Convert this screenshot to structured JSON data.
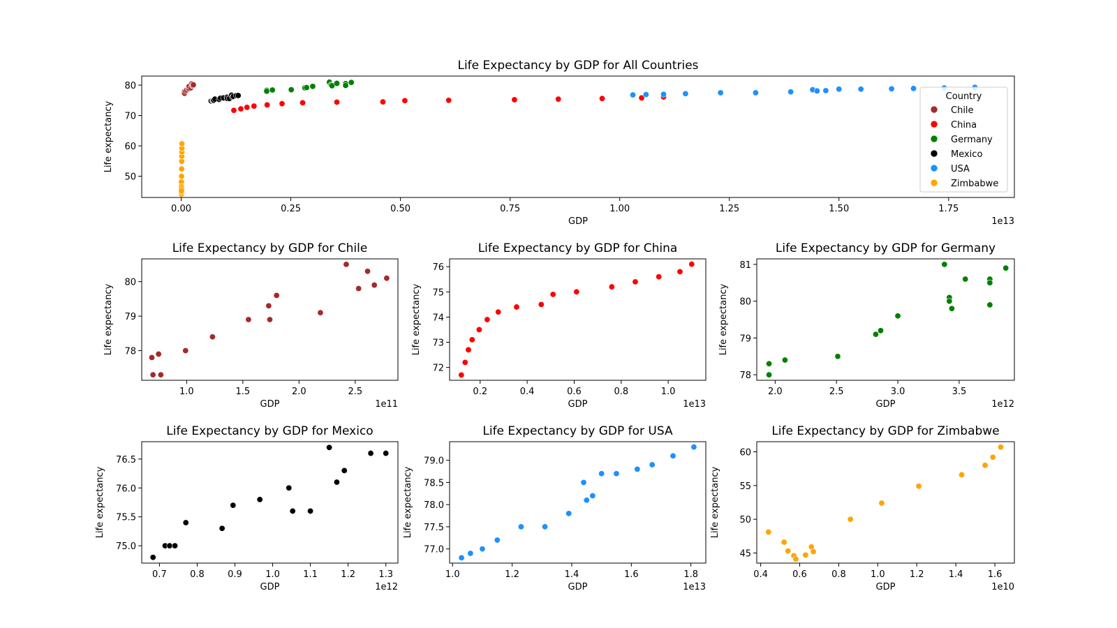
{
  "figure": {
    "background": "#ffffff"
  },
  "colors": {
    "Chile": "#a52a2a",
    "China": "#ff0000",
    "Germany": "#008000",
    "Mexico": "#000000",
    "USA": "#1e90ff",
    "Zimbabwe": "#ffa500"
  },
  "legend": {
    "title": "Country",
    "entries": [
      "Chile",
      "China",
      "Germany",
      "Mexico",
      "USA",
      "Zimbabwe"
    ],
    "placement": "right"
  },
  "chart_data": [
    {
      "id": "all",
      "type": "scatter",
      "title": "Life Expectancy by GDP for All Countries",
      "xlabel": "GDP",
      "ylabel": "Life expectancy",
      "x_multiplier": "1e13",
      "xticks": [
        0,
        0.25,
        0.5,
        0.75,
        1.0,
        1.25,
        1.5,
        1.75
      ],
      "xtick_labels": [
        "0.00",
        "0.25",
        "0.50",
        "0.75",
        "1.00",
        "1.25",
        "1.50",
        "1.75"
      ],
      "yticks": [
        50,
        60,
        70,
        80
      ],
      "ytick_labels": [
        "50",
        "60",
        "70",
        "80"
      ],
      "xlim": [
        -0.09,
        1.9
      ],
      "ylim": [
        43,
        83
      ],
      "legend": true,
      "series_from": [
        "Chile",
        "China",
        "Germany",
        "Mexico",
        "USA",
        "Zimbabwe"
      ],
      "scale_x": {
        "Chile": 0.01,
        "China": 1,
        "Germany": 0.1,
        "Mexico": 0.1,
        "USA": 1,
        "Zimbabwe": 0.001
      }
    },
    {
      "id": "Chile",
      "type": "scatter",
      "title": "Life Expectancy by GDP for Chile",
      "xlabel": "GDP",
      "ylabel": "Life expectancy",
      "x_multiplier": "1e11",
      "xticks": [
        1.0,
        1.5,
        2.0,
        2.5
      ],
      "xtick_labels": [
        "1.0",
        "1.5",
        "2.0",
        "2.5"
      ],
      "yticks": [
        78,
        79,
        80
      ],
      "ytick_labels": [
        "78",
        "79",
        "80"
      ],
      "xlim": [
        0.6,
        2.88
      ],
      "ylim": [
        77.14,
        80.66
      ],
      "series": [
        {
          "name": "Chile",
          "x": [
            0.69,
            0.7,
            0.75,
            0.77,
            0.99,
            1.23,
            1.55,
            1.73,
            1.74,
            1.8,
            2.19,
            2.42,
            2.53,
            2.61,
            2.67,
            2.78
          ],
          "y": [
            77.8,
            77.3,
            77.9,
            77.3,
            78.0,
            78.4,
            78.9,
            79.3,
            78.9,
            79.6,
            79.1,
            80.5,
            79.8,
            80.3,
            79.9,
            80.1
          ]
        }
      ]
    },
    {
      "id": "China",
      "type": "scatter",
      "title": "Life Expectancy by GDP for China",
      "xlabel": "GDP",
      "ylabel": "Life expectancy",
      "x_multiplier": "1e13",
      "xticks": [
        0.2,
        0.4,
        0.6,
        0.8,
        1.0
      ],
      "xtick_labels": [
        "0.2",
        "0.4",
        "0.6",
        "0.8",
        "1.0"
      ],
      "yticks": [
        72,
        73,
        74,
        75,
        76
      ],
      "ytick_labels": [
        "72",
        "73",
        "74",
        "75",
        "76"
      ],
      "xlim": [
        0.07,
        1.16
      ],
      "ylim": [
        71.49,
        76.31
      ],
      "series": [
        {
          "name": "China",
          "x": [
            0.12,
            0.136,
            0.15,
            0.166,
            0.196,
            0.23,
            0.277,
            0.355,
            0.46,
            0.51,
            0.61,
            0.76,
            0.86,
            0.96,
            1.05,
            1.1
          ],
          "y": [
            71.7,
            72.2,
            72.7,
            73.1,
            73.5,
            73.9,
            74.2,
            74.4,
            74.5,
            74.9,
            75.0,
            75.2,
            75.4,
            75.6,
            75.8,
            76.1
          ]
        }
      ]
    },
    {
      "id": "Germany",
      "type": "scatter",
      "title": "Life Expectancy by GDP for Germany",
      "xlabel": "GDP",
      "ylabel": "Life expectancy",
      "x_multiplier": "1e12",
      "xticks": [
        2.0,
        2.5,
        3.0,
        3.5
      ],
      "xtick_labels": [
        "2.0",
        "2.5",
        "3.0",
        "3.5"
      ],
      "yticks": [
        78,
        79,
        80,
        81
      ],
      "ytick_labels": [
        "78",
        "79",
        "80",
        "81"
      ],
      "xlim": [
        1.85,
        3.95
      ],
      "ylim": [
        77.85,
        81.15
      ],
      "series": [
        {
          "name": "Germany",
          "x": [
            1.95,
            1.95,
            2.08,
            2.51,
            2.82,
            2.86,
            3.0,
            3.38,
            3.42,
            3.42,
            3.44,
            3.55,
            3.75,
            3.75,
            3.75,
            3.88
          ],
          "y": [
            78.3,
            78.0,
            78.4,
            78.5,
            79.1,
            79.2,
            79.6,
            81.0,
            80.1,
            80.0,
            79.8,
            80.6,
            80.6,
            80.5,
            79.9,
            80.9
          ]
        }
      ]
    },
    {
      "id": "Mexico",
      "type": "scatter",
      "title": "Life Expectancy by GDP for Mexico",
      "xlabel": "GDP",
      "ylabel": "Life expectancy",
      "x_multiplier": "1e12",
      "xticks": [
        0.7,
        0.8,
        0.9,
        1.0,
        1.1,
        1.2,
        1.3
      ],
      "xtick_labels": [
        "0.7",
        "0.8",
        "0.9",
        "1.0",
        "1.1",
        "1.2",
        "1.3"
      ],
      "yticks": [
        75.0,
        75.5,
        76.0,
        76.5
      ],
      "ytick_labels": [
        "75.0",
        "75.5",
        "76.0",
        "76.5"
      ],
      "xlim": [
        0.653,
        1.332
      ],
      "ylim": [
        74.7,
        76.8
      ],
      "series": [
        {
          "name": "Mexico",
          "x": [
            0.683,
            0.715,
            0.727,
            0.741,
            0.77,
            0.866,
            0.895,
            0.966,
            1.043,
            1.053,
            1.1,
            1.15,
            1.17,
            1.19,
            1.26,
            1.3
          ],
          "y": [
            74.8,
            75.0,
            75.0,
            75.0,
            75.4,
            75.3,
            75.7,
            75.8,
            76.0,
            75.6,
            75.6,
            76.7,
            76.1,
            76.3,
            76.6,
            76.6
          ]
        }
      ]
    },
    {
      "id": "USA",
      "type": "scatter",
      "title": "Life Expectancy by GDP for USA",
      "xlabel": "GDP",
      "ylabel": "Life expectancy",
      "x_multiplier": "1e13",
      "xticks": [
        1.0,
        1.2,
        1.4,
        1.6,
        1.8
      ],
      "xtick_labels": [
        "1.0",
        "1.2",
        "1.4",
        "1.6",
        "1.8"
      ],
      "yticks": [
        77.0,
        77.5,
        78.0,
        78.5,
        79.0
      ],
      "ytick_labels": [
        "77.0",
        "77.5",
        "78.0",
        "78.5",
        "79.0"
      ],
      "xlim": [
        0.99,
        1.85
      ],
      "ylim": [
        76.68,
        79.42
      ],
      "series": [
        {
          "name": "USA",
          "x": [
            1.03,
            1.06,
            1.1,
            1.15,
            1.23,
            1.31,
            1.39,
            1.44,
            1.45,
            1.47,
            1.5,
            1.55,
            1.62,
            1.67,
            1.74,
            1.81
          ],
          "y": [
            76.8,
            76.9,
            77.0,
            77.2,
            77.5,
            77.5,
            77.8,
            78.5,
            78.1,
            78.2,
            78.7,
            78.7,
            78.8,
            78.9,
            79.1,
            79.3
          ]
        }
      ]
    },
    {
      "id": "Zimbabwe",
      "type": "scatter",
      "title": "Life Expectancy by GDP for Zimbabwe",
      "xlabel": "GDP",
      "ylabel": "Life expectancy",
      "x_multiplier": "1e10",
      "xticks": [
        0.4,
        0.6,
        0.8,
        1.0,
        1.2,
        1.4,
        1.6
      ],
      "xtick_labels": [
        "0.4",
        "0.6",
        "0.8",
        "1.0",
        "1.2",
        "1.4",
        "1.6"
      ],
      "yticks": [
        45,
        50,
        55,
        60
      ],
      "ytick_labels": [
        "45",
        "50",
        "55",
        "60"
      ],
      "xlim": [
        0.38,
        1.7
      ],
      "ylim": [
        43.5,
        61.5
      ],
      "series": [
        {
          "name": "Zimbabwe",
          "x": [
            0.44,
            0.52,
            0.54,
            0.57,
            0.58,
            0.63,
            0.66,
            0.67,
            0.86,
            1.02,
            1.21,
            1.43,
            1.55,
            1.59,
            1.63
          ],
          "y": [
            48.1,
            46.6,
            45.3,
            44.6,
            44.1,
            44.7,
            45.9,
            45.2,
            50.0,
            52.4,
            54.9,
            56.6,
            58.0,
            59.2,
            60.7
          ]
        }
      ]
    }
  ]
}
